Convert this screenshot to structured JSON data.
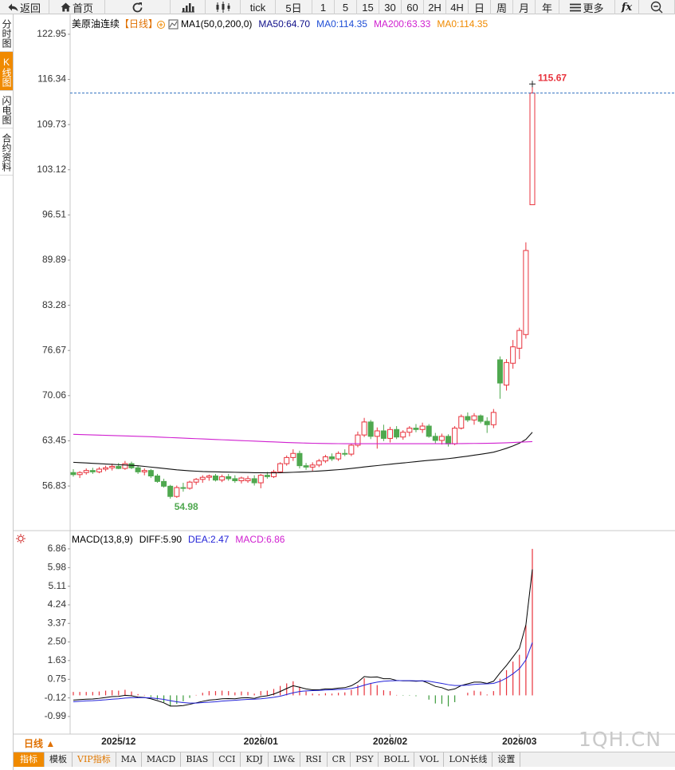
{
  "toolbar": [
    "返回",
    "首页",
    "tick",
    "5日",
    "1",
    "5",
    "15",
    "30",
    "60",
    "2H",
    "4H",
    "日",
    "周",
    "月",
    "年",
    "更多",
    "fx"
  ],
  "sidebar": [
    "分时图",
    "K线图",
    "闪电图",
    "合约资料"
  ],
  "chart_data": [
    {
      "type": "candlestick",
      "title": "美原油连续",
      "period": "【日线】",
      "legend": [
        {
          "text": "MA1(50,0,200,0)",
          "color": "#000000"
        },
        {
          "text": "MA50:64.70",
          "color": "#10108a"
        },
        {
          "text": "MA0:114.35",
          "color": "#1f4fd6"
        },
        {
          "text": "MA200:63.33",
          "color": "#d020d0"
        },
        {
          "text": "MA0:114.35",
          "color": "#f08a00"
        }
      ],
      "up_color": "#e8323c",
      "down_color": "#4fa84f",
      "last_line_color": "#3070c0",
      "open": [
        58.8,
        58.5,
        58.8,
        59.1,
        58.9,
        59.3,
        59.5,
        59.7,
        59.4,
        60.1,
        59.5,
        58.9,
        59.1,
        58.3,
        57.5,
        56.8,
        55.3,
        56.6,
        56.5,
        57.4,
        57.8,
        58.1,
        58.3,
        57.7,
        58.2,
        57.9,
        57.6,
        57.6,
        57.9,
        57.3,
        58.4,
        58.2,
        58.9,
        60.1,
        61.0,
        61.6,
        59.8,
        59.6,
        59.9,
        60.5,
        61.1,
        60.8,
        61.6,
        61.5,
        62.8,
        64.3,
        66.2,
        64.1,
        64.9,
        63.8,
        65.1,
        64.0,
        64.7,
        65.3,
        65.1,
        65.6,
        64.1,
        63.5,
        64.1,
        63.0,
        65.3,
        67.0,
        66.5,
        67.1,
        66.3,
        65.8,
        75.3,
        71.6,
        74.8,
        77.0,
        79.0,
        98.0
      ],
      "high": [
        59.3,
        59.0,
        59.4,
        59.5,
        59.6,
        59.8,
        60.1,
        60.2,
        60.5,
        60.4,
        59.8,
        59.4,
        59.3,
        58.6,
        57.9,
        57.0,
        56.9,
        57.3,
        57.6,
        58.0,
        58.4,
        58.5,
        58.6,
        58.5,
        58.6,
        58.4,
        58.2,
        58.3,
        58.4,
        58.6,
        58.9,
        59.2,
        60.3,
        61.3,
        62.2,
        62.0,
        60.2,
        60.3,
        60.8,
        61.4,
        61.6,
        61.9,
        62.2,
        63.0,
        64.8,
        66.8,
        66.5,
        65.4,
        65.8,
        65.5,
        65.6,
        65.0,
        65.6,
        65.9,
        66.1,
        65.9,
        64.6,
        64.5,
        64.4,
        65.6,
        67.3,
        67.6,
        67.5,
        67.3,
        66.9,
        68.1,
        75.8,
        75.4,
        78.2,
        80.0,
        92.5,
        115.67
      ],
      "low": [
        58.2,
        58.0,
        58.5,
        58.6,
        58.7,
        59.0,
        59.1,
        59.3,
        59.2,
        59.3,
        58.6,
        58.4,
        58.0,
        57.3,
        56.6,
        54.98,
        55.1,
        56.0,
        56.3,
        57.0,
        57.3,
        57.6,
        57.5,
        57.4,
        57.6,
        57.3,
        57.2,
        57.3,
        56.9,
        56.5,
        57.9,
        58.0,
        58.7,
        59.8,
        60.5,
        59.4,
        59.2,
        59.0,
        59.6,
        60.2,
        60.5,
        60.5,
        61.2,
        61.2,
        62.5,
        64.0,
        63.7,
        62.3,
        63.4,
        63.2,
        63.7,
        63.6,
        64.1,
        64.7,
        64.6,
        63.9,
        63.1,
        62.9,
        62.6,
        62.8,
        65.1,
        66.2,
        65.8,
        66.0,
        64.6,
        65.3,
        69.6,
        70.8,
        74.0,
        75.4,
        78.4,
        98.0
      ],
      "close": [
        58.5,
        58.8,
        59.1,
        58.9,
        59.3,
        59.5,
        59.7,
        59.4,
        60.1,
        59.5,
        58.9,
        59.1,
        58.3,
        57.5,
        56.8,
        55.3,
        56.6,
        56.5,
        57.4,
        57.8,
        58.1,
        58.3,
        57.7,
        58.2,
        57.9,
        57.6,
        58.0,
        57.9,
        57.3,
        58.4,
        58.2,
        58.9,
        60.1,
        61.0,
        61.6,
        59.8,
        59.6,
        59.9,
        60.5,
        61.1,
        60.8,
        61.6,
        61.5,
        62.8,
        64.3,
        66.2,
        64.1,
        64.9,
        63.8,
        65.1,
        64.0,
        64.7,
        65.3,
        65.1,
        65.6,
        64.1,
        63.5,
        64.1,
        63.0,
        65.3,
        67.0,
        66.5,
        67.1,
        66.3,
        65.8,
        67.6,
        71.9,
        74.9,
        77.2,
        79.6,
        91.3,
        114.35
      ],
      "series": [
        {
          "color": "#111111",
          "values": [
            60.3,
            60.25,
            60.2,
            60.15,
            60.1,
            60.05,
            60.0,
            59.95,
            59.9,
            59.85,
            59.8,
            59.7,
            59.6,
            59.5,
            59.4,
            59.3,
            59.2,
            59.12,
            59.05,
            59.0,
            58.95,
            58.92,
            58.9,
            58.88,
            58.86,
            58.84,
            58.82,
            58.8,
            58.78,
            58.77,
            58.76,
            58.76,
            58.77,
            58.8,
            58.84,
            58.88,
            58.92,
            58.97,
            59.02,
            59.08,
            59.15,
            59.22,
            59.3,
            59.4,
            59.5,
            59.62,
            59.72,
            59.82,
            59.92,
            60.02,
            60.12,
            60.2,
            60.3,
            60.4,
            60.5,
            60.58,
            60.66,
            60.75,
            60.84,
            60.95,
            61.08,
            61.2,
            61.34,
            61.48,
            61.62,
            61.78,
            62.05,
            62.35,
            62.7,
            63.1,
            63.65,
            64.7
          ]
        },
        {
          "color": "#d020d0",
          "values": [
            64.4,
            64.37,
            64.34,
            64.31,
            64.28,
            64.25,
            64.22,
            64.19,
            64.16,
            64.13,
            64.1,
            64.07,
            64.04,
            64.0,
            63.96,
            63.92,
            63.88,
            63.84,
            63.8,
            63.76,
            63.72,
            63.68,
            63.64,
            63.6,
            63.56,
            63.52,
            63.48,
            63.44,
            63.4,
            63.36,
            63.32,
            63.28,
            63.24,
            63.2,
            63.17,
            63.14,
            63.11,
            63.09,
            63.07,
            63.05,
            63.04,
            63.03,
            63.02,
            63.02,
            63.02,
            63.02,
            63.02,
            63.02,
            63.02,
            63.02,
            63.02,
            63.02,
            63.02,
            63.02,
            63.02,
            63.02,
            63.02,
            63.02,
            63.02,
            63.03,
            63.04,
            63.05,
            63.06,
            63.07,
            63.08,
            63.1,
            63.13,
            63.16,
            63.2,
            63.24,
            63.28,
            63.33
          ]
        }
      ],
      "ylim": [
        50.3,
        125.63
      ],
      "yticks": [
        122.95,
        116.34,
        109.73,
        103.12,
        96.51,
        89.89,
        83.28,
        76.67,
        70.06,
        63.45,
        56.83
      ],
      "xticks": [
        {
          "value": 7,
          "label": "2025/12"
        },
        {
          "value": 29,
          "label": "2026/01"
        },
        {
          "value": 49,
          "label": "2026/02"
        },
        {
          "value": 69,
          "label": "2026/03"
        }
      ]
    },
    {
      "type": "macd",
      "legend": [
        {
          "text": "MACD(13,8,9)",
          "color": "#000000"
        },
        {
          "text": "DIFF:5.90",
          "color": "#000000"
        },
        {
          "text": "DEA:2.47",
          "color": "#2323d8"
        },
        {
          "text": "MACD:6.86",
          "color": "#d020d0"
        }
      ],
      "series": [
        {
          "type": "line",
          "color": "#000000",
          "values": [
            -0.22,
            -0.2,
            -0.18,
            -0.17,
            -0.14,
            -0.1,
            -0.06,
            -0.05,
            0.0,
            -0.02,
            -0.08,
            -0.1,
            -0.16,
            -0.25,
            -0.35,
            -0.5,
            -0.5,
            -0.48,
            -0.42,
            -0.35,
            -0.28,
            -0.22,
            -0.2,
            -0.16,
            -0.15,
            -0.16,
            -0.12,
            -0.11,
            -0.14,
            -0.06,
            -0.02,
            0.06,
            0.18,
            0.32,
            0.45,
            0.38,
            0.3,
            0.26,
            0.26,
            0.3,
            0.3,
            0.34,
            0.36,
            0.45,
            0.62,
            0.88,
            0.85,
            0.86,
            0.78,
            0.78,
            0.7,
            0.68,
            0.68,
            0.66,
            0.68,
            0.56,
            0.42,
            0.36,
            0.24,
            0.3,
            0.46,
            0.54,
            0.62,
            0.62,
            0.56,
            0.66,
            1.05,
            1.4,
            1.8,
            2.2,
            3.3,
            5.9
          ]
        },
        {
          "type": "line",
          "color": "#2323d8",
          "values": [
            -0.3,
            -0.28,
            -0.26,
            -0.25,
            -0.23,
            -0.21,
            -0.18,
            -0.16,
            -0.13,
            -0.11,
            -0.11,
            -0.11,
            -0.12,
            -0.15,
            -0.19,
            -0.25,
            -0.3,
            -0.34,
            -0.36,
            -0.36,
            -0.34,
            -0.32,
            -0.3,
            -0.27,
            -0.25,
            -0.23,
            -0.21,
            -0.19,
            -0.18,
            -0.16,
            -0.13,
            -0.09,
            -0.04,
            0.04,
            0.12,
            0.18,
            0.21,
            0.22,
            0.23,
            0.25,
            0.26,
            0.28,
            0.29,
            0.32,
            0.38,
            0.48,
            0.56,
            0.62,
            0.66,
            0.68,
            0.69,
            0.69,
            0.69,
            0.68,
            0.68,
            0.66,
            0.61,
            0.56,
            0.5,
            0.46,
            0.46,
            0.48,
            0.51,
            0.53,
            0.54,
            0.56,
            0.66,
            0.81,
            1.01,
            1.25,
            1.66,
            2.47
          ]
        },
        {
          "type": "bar",
          "color": "#e8323c",
          "negative_color": "#3a9a3a",
          "values": [
            0.16,
            0.16,
            0.16,
            0.16,
            0.18,
            0.22,
            0.24,
            0.22,
            0.26,
            0.18,
            0.06,
            0.02,
            -0.08,
            -0.2,
            -0.32,
            -0.5,
            -0.4,
            -0.28,
            -0.12,
            0.02,
            0.12,
            0.2,
            0.2,
            0.22,
            0.2,
            0.14,
            0.18,
            0.16,
            0.08,
            0.2,
            0.22,
            0.3,
            0.44,
            0.56,
            0.66,
            0.4,
            0.18,
            0.08,
            0.06,
            0.1,
            0.08,
            0.12,
            0.14,
            0.26,
            0.48,
            0.8,
            0.58,
            0.48,
            0.24,
            0.2,
            0.02,
            -0.02,
            -0.02,
            -0.04,
            0.0,
            -0.2,
            -0.38,
            -0.4,
            -0.52,
            -0.32,
            0.0,
            0.12,
            0.22,
            0.18,
            0.04,
            0.2,
            0.78,
            1.18,
            1.58,
            1.9,
            3.28,
            6.86
          ]
        }
      ],
      "ylim": [
        -1.74,
        7.08
      ],
      "yticks": [
        6.86,
        5.98,
        5.11,
        4.24,
        3.37,
        {
          "value": 2.5,
          "label": "2.50"
        },
        1.63,
        0.75,
        -0.12,
        -0.99
      ]
    }
  ],
  "period_label": "日线 ▲",
  "tabs": [
    "指标",
    "模板",
    "VIP指标",
    "MA",
    "MACD",
    "BIAS",
    "CCI",
    "KDJ",
    "LW&",
    "RSI",
    "CR",
    "PSY",
    "BOLL",
    "VOL",
    "LON长线",
    "设置"
  ],
  "watermark": "1QH.CN"
}
